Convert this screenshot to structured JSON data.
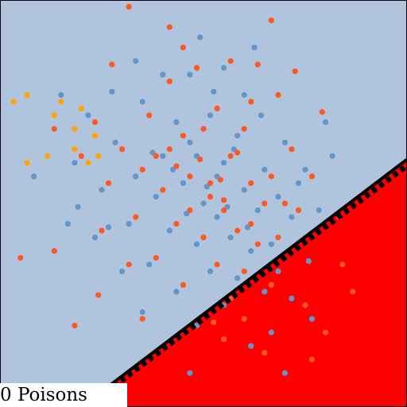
{
  "chart_data": {
    "type": "scatter",
    "caption": "0 Poisons",
    "xlim": [
      -3,
      3
    ],
    "ylim": [
      -3,
      3
    ],
    "grid": false,
    "colors": {
      "safe_region": "#b0c4de",
      "unsafe_region": "#ff0000",
      "boundary_line": "#000000",
      "border": "#000000"
    },
    "decision_boundary": {
      "label": "",
      "points": [
        [
          -1.8,
          -3.0
        ],
        [
          3.0,
          0.65
        ]
      ]
    },
    "margin_boundary": {
      "style": "dashed",
      "points": [
        [
          -1.73,
          -3.0
        ],
        [
          3.0,
          0.56
        ]
      ]
    },
    "series": [
      {
        "color": "#6495c8",
        "points": [
          [
            -0.9,
            1.5
          ],
          [
            -0.4,
            1.2
          ],
          [
            -0.6,
            0.7
          ],
          [
            -0.2,
            0.9
          ],
          [
            0.1,
            1.3
          ],
          [
            0.3,
            0.6
          ],
          [
            0.5,
            1.0
          ],
          [
            -1.0,
            0.4
          ],
          [
            -0.7,
            0.1
          ],
          [
            -0.3,
            0.3
          ],
          [
            0.0,
            0.0
          ],
          [
            0.2,
            -0.2
          ],
          [
            0.6,
            0.2
          ],
          [
            0.8,
            -0.1
          ],
          [
            -0.5,
            -0.4
          ],
          [
            -0.1,
            -0.6
          ],
          [
            0.4,
            -0.5
          ],
          [
            0.7,
            -0.7
          ],
          [
            0.9,
            0.5
          ],
          [
            1.1,
            0.1
          ],
          [
            -1.3,
            0.9
          ],
          [
            -1.5,
            0.2
          ],
          [
            -1.1,
            -0.3
          ],
          [
            -0.8,
            -0.9
          ],
          [
            0.1,
            -1.0
          ],
          [
            0.5,
            -1.1
          ],
          [
            1.0,
            -0.6
          ],
          [
            1.3,
            -0.2
          ],
          [
            -0.2,
            1.9
          ],
          [
            0.3,
            2.0
          ],
          [
            -0.6,
            1.9
          ],
          [
            0.6,
            1.6
          ],
          [
            1.2,
            0.9
          ],
          [
            1.5,
            0.5
          ],
          [
            -1.9,
            0.6
          ],
          [
            -1.7,
            1.3
          ],
          [
            -1.6,
            -0.5
          ],
          [
            -1.2,
            -1.0
          ],
          [
            -0.4,
            -1.3
          ],
          [
            0.3,
            -1.5
          ],
          [
            0.9,
            -1.3
          ],
          [
            0.2,
            0.4
          ],
          [
            -0.1,
            0.7
          ],
          [
            0.45,
            0.8
          ],
          [
            -0.45,
            0.5
          ],
          [
            0.35,
            -0.05
          ],
          [
            -0.25,
            -0.15
          ],
          [
            0.05,
            0.25
          ],
          [
            0.65,
            -0.35
          ],
          [
            -0.75,
            0.75
          ],
          [
            -2.5,
            0.4
          ],
          [
            -2.0,
            -0.3
          ],
          [
            1.7,
            -0.1
          ],
          [
            1.9,
            0.7
          ],
          [
            -2.1,
            1.6
          ],
          [
            1.3,
            -1.4
          ],
          [
            0.75,
            2.3
          ],
          [
            -1.0,
            2.1
          ],
          [
            1.8,
            1.2
          ],
          [
            -0.1,
            -1.8
          ],
          [
            -0.9,
            -1.6
          ],
          [
            1.4,
            0.3
          ],
          [
            0.85,
            1.3
          ],
          [
            -1.35,
            1.65
          ],
          [
            -0.05,
            2.45
          ],
          [
            1.55,
            -0.85
          ],
          [
            -1.85,
            -0.05
          ],
          [
            -1.4,
            -0.35
          ],
          [
            0.15,
            1.65
          ],
          [
            1.1,
            -1.0
          ],
          [
            1.6,
            -1.7
          ],
          [
            0.7,
            -2.1
          ],
          [
            -0.2,
            -2.5
          ],
          [
            1.2,
            -2.5
          ],
          [
            1.0,
            -1.9
          ]
        ]
      },
      {
        "color": "#ff5722",
        "points": [
          [
            -0.8,
            1.3
          ],
          [
            -0.3,
            1.0
          ],
          [
            -0.5,
            0.8
          ],
          [
            0.0,
            1.1
          ],
          [
            0.2,
            1.4
          ],
          [
            0.4,
            0.7
          ],
          [
            0.6,
            1.1
          ],
          [
            -0.9,
            0.5
          ],
          [
            -0.6,
            0.2
          ],
          [
            -0.2,
            0.4
          ],
          [
            0.1,
            0.1
          ],
          [
            0.3,
            -0.1
          ],
          [
            0.7,
            0.3
          ],
          [
            0.9,
            0.0
          ],
          [
            -0.4,
            -0.3
          ],
          [
            0.0,
            -0.5
          ],
          [
            0.5,
            -0.4
          ],
          [
            0.8,
            -0.6
          ],
          [
            1.0,
            0.4
          ],
          [
            1.2,
            0.0
          ],
          [
            -1.2,
            0.8
          ],
          [
            -1.4,
            0.3
          ],
          [
            -1.0,
            -0.2
          ],
          [
            -0.7,
            -0.8
          ],
          [
            0.2,
            -0.9
          ],
          [
            0.6,
            -1.0
          ],
          [
            1.1,
            -0.5
          ],
          [
            1.4,
            -0.1
          ],
          [
            -0.1,
            2.0
          ],
          [
            0.4,
            2.1
          ],
          [
            -0.5,
            1.8
          ],
          [
            0.7,
            1.5
          ],
          [
            1.3,
            0.8
          ],
          [
            1.6,
            0.4
          ],
          [
            -1.8,
            0.7
          ],
          [
            -1.6,
            1.2
          ],
          [
            -1.5,
            -0.4
          ],
          [
            -1.1,
            -0.9
          ],
          [
            -0.3,
            -1.2
          ],
          [
            0.4,
            -1.4
          ],
          [
            1.0,
            -1.2
          ],
          [
            0.25,
            0.35
          ],
          [
            -0.05,
            0.65
          ],
          [
            0.5,
            0.75
          ],
          [
            -0.4,
            0.55
          ],
          [
            0.3,
            0.05
          ],
          [
            -0.2,
            -0.1
          ],
          [
            0.1,
            0.3
          ],
          [
            0.7,
            -0.3
          ],
          [
            -0.7,
            0.7
          ],
          [
            -1.1,
            2.9
          ],
          [
            -0.5,
            2.6
          ],
          [
            1.0,
            2.7
          ],
          [
            -2.2,
            1.1
          ],
          [
            1.75,
            1.35
          ],
          [
            -2.2,
            -0.7
          ],
          [
            2.05,
            -0.9
          ],
          [
            -1.55,
            -1.35
          ],
          [
            0.15,
            -1.75
          ],
          [
            0.8,
            2.05
          ],
          [
            -0.3,
            2.3
          ],
          [
            1.35,
            1.95
          ],
          [
            -1.35,
            2.05
          ],
          [
            1.5,
            -1.5
          ],
          [
            2.0,
            -0.2
          ],
          [
            -2.7,
            -0.8
          ],
          [
            -1.9,
            -1.8
          ],
          [
            1.1,
            1.6
          ],
          [
            -0.9,
            -1.7
          ],
          [
            0.6,
            -1.7
          ],
          [
            0.9,
            -2.2
          ],
          [
            1.8,
            -1.9
          ],
          [
            2.2,
            -1.3
          ],
          [
            1.6,
            -2.3
          ],
          [
            0.3,
            -2.0
          ]
        ]
      },
      {
        "color": "#ffa500",
        "points": [
          [
            -2.8,
            1.5
          ],
          [
            -2.6,
            1.6
          ],
          [
            -2.2,
            1.3
          ],
          [
            -1.8,
            1.4
          ],
          [
            -1.6,
            1.0
          ],
          [
            -1.9,
            0.8
          ],
          [
            -2.3,
            0.7
          ],
          [
            -2.6,
            0.6
          ],
          [
            -1.9,
            1.1
          ],
          [
            -1.7,
            0.6
          ],
          [
            -2.1,
            1.5
          ],
          [
            -1.55,
            0.7
          ]
        ]
      }
    ]
  }
}
